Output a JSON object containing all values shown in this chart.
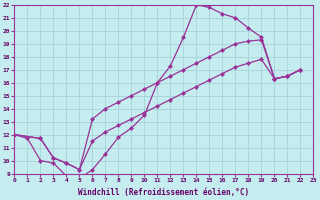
{
  "bg_color": "#c5ecee",
  "grid_color": "#a0cdd5",
  "line_color": "#993399",
  "xlim": [
    0,
    23
  ],
  "ylim": [
    9,
    22
  ],
  "xlabel": "Windchill (Refroidissement éolien,°C)",
  "curve1_x": [
    0,
    1,
    2,
    3,
    4,
    5,
    6,
    7,
    8,
    9,
    10,
    11,
    12,
    13,
    14,
    15,
    16,
    17,
    18,
    19,
    20,
    21,
    22
  ],
  "curve1_y": [
    12,
    11.7,
    10.0,
    9.8,
    8.8,
    8.6,
    9.3,
    10.5,
    11.8,
    12.5,
    13.5,
    16.0,
    17.3,
    19.5,
    22.0,
    21.8,
    21.3,
    21.0,
    20.2,
    19.5,
    16.3,
    16.5,
    17.0
  ],
  "curve2_x": [
    0,
    2,
    3,
    4,
    5,
    6,
    7,
    8,
    9,
    10,
    11,
    12,
    13,
    14,
    15,
    16,
    17,
    18,
    19,
    20,
    21,
    22
  ],
  "curve2_y": [
    12,
    11.7,
    10.2,
    9.8,
    9.3,
    13.2,
    14.0,
    14.5,
    15.0,
    15.5,
    16.0,
    16.5,
    17.0,
    17.5,
    18.0,
    18.5,
    19.0,
    19.2,
    19.3,
    16.3,
    16.5,
    17.0
  ],
  "curve3_x": [
    0,
    2,
    3,
    4,
    5,
    6,
    7,
    8,
    9,
    10,
    11,
    12,
    13,
    14,
    15,
    16,
    17,
    18,
    19,
    20,
    21,
    22
  ],
  "curve3_y": [
    12,
    11.7,
    10.2,
    9.8,
    9.3,
    11.5,
    12.2,
    12.7,
    13.2,
    13.7,
    14.2,
    14.7,
    15.2,
    15.7,
    16.2,
    16.7,
    17.2,
    17.5,
    17.8,
    16.3,
    16.5,
    17.0
  ],
  "xticks": [
    0,
    1,
    2,
    3,
    4,
    5,
    6,
    7,
    8,
    9,
    10,
    11,
    12,
    13,
    14,
    15,
    16,
    17,
    18,
    19,
    20,
    21,
    22,
    23
  ],
  "yticks": [
    9,
    10,
    11,
    12,
    13,
    14,
    15,
    16,
    17,
    18,
    19,
    20,
    21,
    22
  ]
}
